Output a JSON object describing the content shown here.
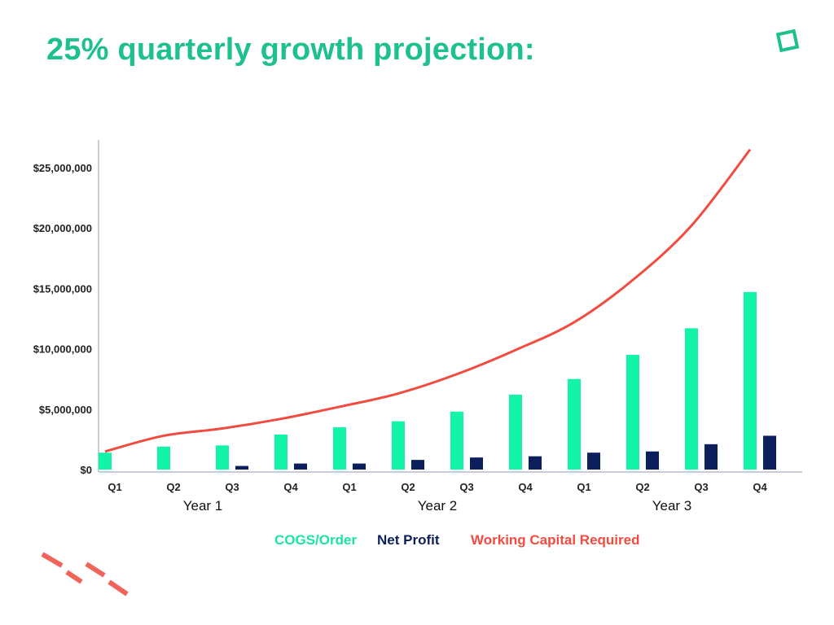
{
  "page": {
    "title": "25% quarterly growth projection:",
    "accent_color": "#1fc08f",
    "decoration_color": "#f0645a"
  },
  "chart_data": {
    "type": "bar",
    "categories": [
      "Q1",
      "Q2",
      "Q3",
      "Q4",
      "Q1",
      "Q2",
      "Q3",
      "Q4",
      "Q1",
      "Q2",
      "Q3",
      "Q4"
    ],
    "groups": [
      {
        "label": "Year 1",
        "span": [
          0,
          3
        ]
      },
      {
        "label": "Year 2",
        "span": [
          4,
          7
        ]
      },
      {
        "label": "Year 3",
        "span": [
          8,
          11
        ]
      }
    ],
    "y_ticks": [
      0,
      5000000,
      10000000,
      15000000,
      20000000,
      25000000
    ],
    "y_tick_labels": [
      "$0",
      "$5,000,000",
      "$10,000,000",
      "$15,000,000",
      "$20,000,000",
      "$25,000,000"
    ],
    "ylim": [
      0,
      27500000
    ],
    "grid": false,
    "legend_position": "bottom",
    "series": [
      {
        "name": "COGS/Order",
        "kind": "bar",
        "color": "#12f5a8",
        "values": [
          1400000,
          1900000,
          2000000,
          2900000,
          3500000,
          4000000,
          4800000,
          6200000,
          7500000,
          9500000,
          11700000,
          14700000
        ]
      },
      {
        "name": "Net Profit",
        "kind": "bar",
        "color": "#0b1f5c",
        "values": [
          0,
          0,
          300000,
          500000,
          500000,
          800000,
          1000000,
          1100000,
          1400000,
          1500000,
          2100000,
          2800000
        ]
      },
      {
        "name": "Working Capital Required",
        "kind": "line",
        "color": "#f24b3f",
        "values": [
          1500000,
          2800000,
          3400000,
          4200000,
          5200000,
          6300000,
          7900000,
          9900000,
          12200000,
          15700000,
          20200000,
          26500000
        ]
      }
    ]
  }
}
